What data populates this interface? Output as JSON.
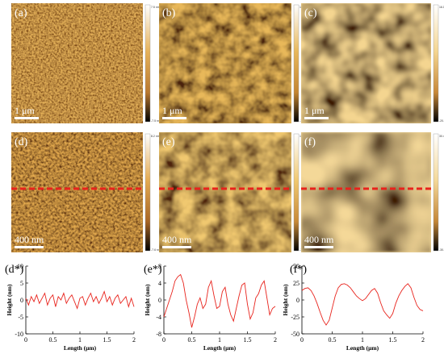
{
  "panels": [
    {
      "id": "a",
      "label": "(a)",
      "scale_bar": "1 μm",
      "colorbar": {
        "max": "7.5 nm",
        "min": "-7.5 nm"
      },
      "palette": [
        "#e6b25a",
        "#b9782f",
        "#7a4512"
      ],
      "has_dashed_line": false
    },
    {
      "id": "b",
      "label": "(b)",
      "scale_bar": "1 μm",
      "colorbar": {
        "max": "10.2 nm",
        "min": "-10.8 nm"
      },
      "palette": [
        "#e8b85a",
        "#c48531",
        "#4a220a"
      ],
      "has_dashed_line": false
    },
    {
      "id": "c",
      "label": "(c)",
      "scale_bar": "1 μm",
      "colorbar": {
        "max": "16.1 nm",
        "min": "-20.1 nm"
      },
      "palette": [
        "#f4d590",
        "#c88838",
        "#3a1806"
      ],
      "has_dashed_line": false
    },
    {
      "id": "d",
      "label": "(d)",
      "scale_bar": "400 nm",
      "colorbar": {
        "max": "8.2 nm",
        "min": "-7.6 nm"
      },
      "palette": [
        "#e4aa50",
        "#a86626",
        "#5a2c0c"
      ],
      "has_dashed_line": true
    },
    {
      "id": "e",
      "label": "(e)",
      "scale_bar": "400 nm",
      "colorbar": {
        "max": "10.1 nm",
        "min": "-10.1 nm"
      },
      "palette": [
        "#f0c870",
        "#c88a38",
        "#4e240a"
      ],
      "has_dashed_line": true
    },
    {
      "id": "f",
      "label": "(f)",
      "scale_bar": "400 nm",
      "colorbar": {
        "max": "30.4 nm",
        "min": "-30.6 nm"
      },
      "palette": [
        "#f4d898",
        "#c48636",
        "#3a1806"
      ],
      "has_dashed_line": true
    }
  ],
  "profile_line_color": "#e8231c",
  "chart_data": [
    {
      "type": "line",
      "label": "(d*)",
      "xlabel": "Length (μm)",
      "ylabel": "Height (nm)",
      "xlim": [
        0,
        2
      ],
      "ylim": [
        -10,
        10
      ],
      "xticks": [
        "0",
        "0.5",
        "1",
        "1.5",
        "2"
      ],
      "yticks": [
        "10",
        "5",
        "0",
        "-5",
        "-10"
      ],
      "series": [
        {
          "x": [
            0,
            0.05,
            0.1,
            0.15,
            0.2,
            0.25,
            0.3,
            0.35,
            0.4,
            0.45,
            0.5,
            0.55,
            0.6,
            0.65,
            0.7,
            0.75,
            0.8,
            0.85,
            0.9,
            0.95,
            1.0,
            1.05,
            1.1,
            1.15,
            1.2,
            1.25,
            1.3,
            1.35,
            1.4,
            1.45,
            1.5,
            1.55,
            1.6,
            1.65,
            1.7,
            1.75,
            1.8,
            1.85,
            1.9,
            1.95,
            2.0
          ],
          "y": [
            0.5,
            -1.5,
            1.0,
            -0.5,
            1.5,
            -1.0,
            0.5,
            2.0,
            -1.5,
            0.5,
            1.5,
            -2.0,
            1.0,
            0.0,
            2.0,
            -1.0,
            0.5,
            1.5,
            -0.5,
            -2.5,
            0.5,
            1.0,
            -1.5,
            0.5,
            2.0,
            -0.5,
            1.0,
            -1.0,
            0.5,
            2.5,
            -0.5,
            1.0,
            -1.5,
            0.5,
            1.5,
            -1.0,
            0.0,
            1.0,
            -2.0,
            0.5,
            -2.0
          ]
        }
      ]
    },
    {
      "type": "line",
      "label": "(e*)",
      "xlabel": "Length (μm)",
      "ylabel": "Height (nm)",
      "xlim": [
        0,
        2
      ],
      "ylim": [
        -8,
        8
      ],
      "xticks": [
        "0",
        "0.5",
        "1",
        "1.5",
        "2"
      ],
      "yticks": [
        "8",
        "4",
        "0",
        "-4",
        "-8"
      ],
      "series": [
        {
          "x": [
            0,
            0.05,
            0.1,
            0.15,
            0.2,
            0.25,
            0.3,
            0.35,
            0.4,
            0.45,
            0.5,
            0.55,
            0.6,
            0.65,
            0.7,
            0.75,
            0.8,
            0.85,
            0.9,
            0.95,
            1.0,
            1.05,
            1.1,
            1.15,
            1.2,
            1.25,
            1.3,
            1.35,
            1.4,
            1.45,
            1.5,
            1.55,
            1.6,
            1.65,
            1.7,
            1.75,
            1.8,
            1.85,
            1.9,
            1.95,
            2.0
          ],
          "y": [
            -4.0,
            -2.0,
            0.0,
            2.0,
            4.5,
            5.5,
            6.0,
            4.0,
            0.0,
            -3.0,
            -6.5,
            -4.0,
            -1.0,
            0.5,
            -2.0,
            -1.0,
            3.0,
            4.5,
            1.0,
            -2.0,
            -1.5,
            2.0,
            3.0,
            -1.0,
            -3.5,
            -5.0,
            -2.0,
            1.0,
            3.5,
            4.0,
            -1.0,
            -4.5,
            -3.0,
            0.5,
            1.5,
            3.5,
            4.5,
            0.5,
            -3.5,
            -2.0,
            -1.5
          ]
        }
      ]
    },
    {
      "type": "line",
      "label": "(f*)",
      "xlabel": "Length (μm)",
      "ylabel": "Height (nm)",
      "xlim": [
        0,
        2
      ],
      "ylim": [
        -50,
        50
      ],
      "xticks": [
        "0",
        "0.5",
        "1",
        "1.5",
        "2"
      ],
      "yticks": [
        "50",
        "25",
        "0",
        "-25",
        "-50"
      ],
      "series": [
        {
          "x": [
            0,
            0.05,
            0.1,
            0.15,
            0.2,
            0.25,
            0.3,
            0.35,
            0.4,
            0.45,
            0.5,
            0.55,
            0.6,
            0.65,
            0.7,
            0.75,
            0.8,
            0.85,
            0.9,
            0.95,
            1.0,
            1.05,
            1.1,
            1.15,
            1.2,
            1.25,
            1.3,
            1.35,
            1.4,
            1.45,
            1.5,
            1.55,
            1.6,
            1.65,
            1.7,
            1.75,
            1.8,
            1.85,
            1.9,
            1.95,
            2.0
          ],
          "y": [
            14,
            17,
            18,
            14,
            6,
            -5,
            -18,
            -30,
            -37,
            -30,
            -12,
            6,
            18,
            23,
            24,
            22,
            18,
            12,
            6,
            2,
            -1,
            2,
            8,
            14,
            17,
            10,
            -4,
            -16,
            -22,
            -27,
            -20,
            -5,
            6,
            14,
            20,
            24,
            18,
            4,
            -8,
            -14,
            -16
          ]
        }
      ]
    }
  ]
}
